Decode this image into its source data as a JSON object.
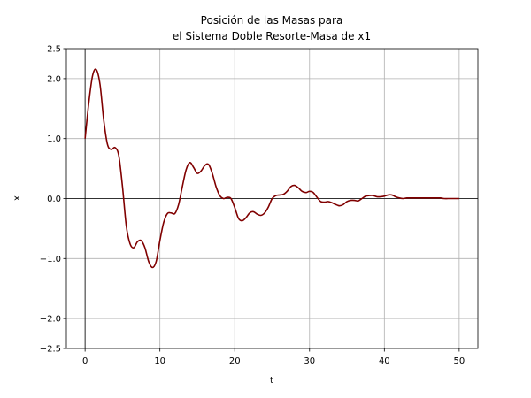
{
  "chart_data": {
    "type": "line",
    "title_line1": "Posición de las Masas para",
    "title_line2": "el Sistema Doble Resorte-Masa de x1",
    "xlabel": "t",
    "ylabel": "x",
    "xlim": [
      -2.5,
      52.5
    ],
    "ylim": [
      -2.5,
      2.5
    ],
    "xticks": [
      0,
      10,
      20,
      30,
      40,
      50
    ],
    "xtick_labels": [
      "0",
      "10",
      "20",
      "30",
      "40",
      "50"
    ],
    "yticks": [
      -2.5,
      -2.0,
      -1.0,
      0.0,
      1.0,
      2.0,
      2.5
    ],
    "ytick_labels": [
      "−2.5",
      "−2.0",
      "−1.0",
      "0.0",
      "1.0",
      "2.0",
      "2.5"
    ],
    "grid": true,
    "series": [
      {
        "color": "#800000",
        "x": [
          0,
          0.5,
          1,
          1.5,
          2,
          2.5,
          3,
          3.5,
          4,
          4.5,
          5,
          5.5,
          6,
          6.5,
          7,
          7.5,
          8,
          8.5,
          9,
          9.5,
          10,
          10.5,
          11,
          11.5,
          12,
          12.5,
          13,
          13.5,
          14,
          14.5,
          15,
          15.5,
          16,
          16.5,
          17,
          17.5,
          18,
          18.5,
          19,
          19.5,
          20,
          20.5,
          21,
          21.5,
          22,
          22.5,
          23,
          23.5,
          24,
          24.5,
          25,
          25.5,
          26,
          26.5,
          27,
          27.5,
          28,
          28.5,
          29,
          29.5,
          30,
          30.5,
          31,
          31.5,
          32,
          32.5,
          33,
          33.5,
          34,
          34.5,
          35,
          35.5,
          36,
          36.5,
          37,
          37.5,
          38,
          38.5,
          39,
          39.5,
          40,
          40.5,
          41,
          41.5,
          42,
          42.5,
          43,
          43.5,
          44,
          44.5,
          45,
          45.5,
          46,
          46.5,
          47,
          47.5,
          48,
          48.5,
          49,
          49.5,
          50
        ],
        "y": [
          1.0,
          1.6,
          2.05,
          2.15,
          1.9,
          1.3,
          0.9,
          0.82,
          0.85,
          0.72,
          0.2,
          -0.45,
          -0.75,
          -0.82,
          -0.72,
          -0.7,
          -0.82,
          -1.05,
          -1.15,
          -1.05,
          -0.7,
          -0.4,
          -0.25,
          -0.24,
          -0.25,
          -0.1,
          0.2,
          0.48,
          0.6,
          0.52,
          0.42,
          0.46,
          0.55,
          0.57,
          0.42,
          0.2,
          0.05,
          0.0,
          0.02,
          0.0,
          -0.15,
          -0.33,
          -0.37,
          -0.32,
          -0.24,
          -0.22,
          -0.26,
          -0.28,
          -0.24,
          -0.14,
          0.0,
          0.05,
          0.06,
          0.07,
          0.12,
          0.2,
          0.22,
          0.18,
          0.12,
          0.1,
          0.12,
          0.1,
          0.02,
          -0.05,
          -0.06,
          -0.05,
          -0.07,
          -0.1,
          -0.12,
          -0.1,
          -0.05,
          -0.03,
          -0.03,
          -0.04,
          0.0,
          0.04,
          0.05,
          0.05,
          0.03,
          0.03,
          0.04,
          0.06,
          0.06,
          0.03,
          0.01,
          0.0,
          0.01,
          0.01,
          0.01,
          0.01,
          0.01,
          0.01,
          0.01,
          0.01,
          0.01,
          0.01,
          0.0,
          0.0,
          0.0,
          0.0,
          0.0
        ]
      }
    ]
  }
}
